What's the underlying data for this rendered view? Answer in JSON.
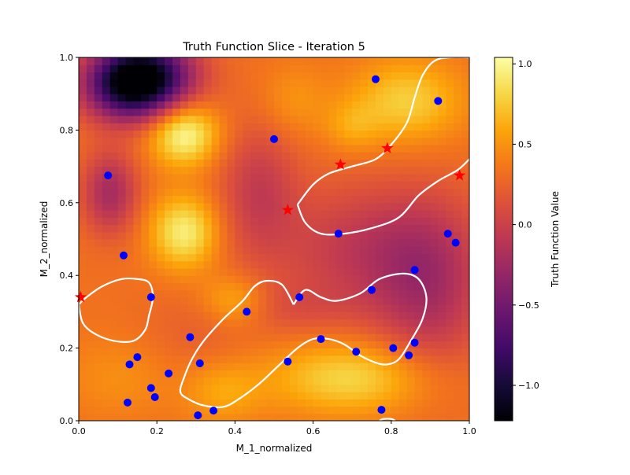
{
  "chart_data": {
    "type": "heatmap",
    "title": "Truth Function Slice - Iteration 5",
    "xlabel": "M_1_normalized",
    "ylabel": "M_2_normalized",
    "xlim": [
      0,
      1
    ],
    "ylim": [
      0,
      1
    ],
    "x_ticks": [
      "0.0",
      "0.2",
      "0.4",
      "0.6",
      "0.8",
      "1.0"
    ],
    "y_ticks": [
      "0.0",
      "0.2",
      "0.4",
      "0.6",
      "0.8",
      "1.0"
    ],
    "colormap": "inferno",
    "colorbar": {
      "label": "Truth Function Value",
      "range": [
        -1.22,
        1.04
      ],
      "ticks": [
        "−1.0",
        "−0.5",
        "0.0",
        "0.5",
        "1.0"
      ],
      "tick_values": [
        -1.0,
        -0.5,
        0.0,
        0.5,
        1.0
      ]
    },
    "field_features": {
      "base": 0.33,
      "bumps": [
        {
          "x": 0.16,
          "y": 0.95,
          "amp": -1.55,
          "sx": 0.09,
          "sy": 0.07
        },
        {
          "x": 0.12,
          "y": 0.9,
          "amp": -0.5,
          "sx": 0.08,
          "sy": 0.06
        },
        {
          "x": 0.27,
          "y": 0.79,
          "amp": 0.7,
          "sx": 0.06,
          "sy": 0.06
        },
        {
          "x": 0.27,
          "y": 0.52,
          "amp": 0.62,
          "sx": 0.06,
          "sy": 0.07
        },
        {
          "x": 0.08,
          "y": 0.63,
          "amp": -0.55,
          "sx": 0.05,
          "sy": 0.08
        },
        {
          "x": 0.46,
          "y": 0.64,
          "amp": -0.35,
          "sx": 0.07,
          "sy": 0.13
        },
        {
          "x": 0.55,
          "y": 0.88,
          "amp": 0.18,
          "sx": 0.06,
          "sy": 0.07
        },
        {
          "x": 0.84,
          "y": 0.88,
          "amp": 0.45,
          "sx": 0.1,
          "sy": 0.08
        },
        {
          "x": 0.7,
          "y": 0.81,
          "amp": 0.22,
          "sx": 0.05,
          "sy": 0.05
        },
        {
          "x": 0.74,
          "y": 0.47,
          "amp": -0.4,
          "sx": 0.17,
          "sy": 0.13
        },
        {
          "x": 0.9,
          "y": 0.35,
          "amp": -0.42,
          "sx": 0.1,
          "sy": 0.17
        },
        {
          "x": 0.53,
          "y": 0.31,
          "amp": -0.15,
          "sx": 0.12,
          "sy": 0.05
        },
        {
          "x": 0.3,
          "y": 0.24,
          "amp": -0.1,
          "sx": 0.1,
          "sy": 0.08
        },
        {
          "x": 0.7,
          "y": 0.12,
          "amp": 0.5,
          "sx": 0.15,
          "sy": 0.07
        },
        {
          "x": 0.1,
          "y": 0.12,
          "amp": 0.15,
          "sx": 0.1,
          "sy": 0.08
        },
        {
          "x": 0.37,
          "y": 0.08,
          "amp": 0.25,
          "sx": 0.07,
          "sy": 0.06
        },
        {
          "x": 0.4,
          "y": 0.33,
          "amp": 0.35,
          "sx": 0.06,
          "sy": 0.05
        }
      ]
    },
    "contours": [
      [
        [
          0.0,
          0.32
        ],
        [
          0.01,
          0.27
        ],
        [
          0.04,
          0.24
        ],
        [
          0.09,
          0.22
        ],
        [
          0.14,
          0.22
        ],
        [
          0.17,
          0.25
        ],
        [
          0.18,
          0.29
        ],
        [
          0.19,
          0.34
        ],
        [
          0.18,
          0.38
        ],
        [
          0.15,
          0.39
        ],
        [
          0.11,
          0.39
        ],
        [
          0.06,
          0.37
        ],
        [
          0.02,
          0.34
        ],
        [
          0.0,
          0.32
        ]
      ],
      [
        [
          0.55,
          0.32
        ],
        [
          0.58,
          0.36
        ],
        [
          0.62,
          0.34
        ],
        [
          0.66,
          0.33
        ],
        [
          0.72,
          0.35
        ],
        [
          0.77,
          0.39
        ],
        [
          0.83,
          0.405
        ],
        [
          0.87,
          0.39
        ],
        [
          0.89,
          0.34
        ],
        [
          0.88,
          0.28
        ],
        [
          0.85,
          0.22
        ],
        [
          0.82,
          0.17
        ],
        [
          0.79,
          0.155
        ],
        [
          0.76,
          0.16
        ],
        [
          0.72,
          0.18
        ],
        [
          0.68,
          0.21
        ],
        [
          0.64,
          0.225
        ],
        [
          0.6,
          0.225
        ],
        [
          0.56,
          0.2
        ],
        [
          0.51,
          0.15
        ],
        [
          0.46,
          0.1
        ],
        [
          0.41,
          0.06
        ],
        [
          0.37,
          0.038
        ],
        [
          0.32,
          0.042
        ],
        [
          0.28,
          0.06
        ],
        [
          0.26,
          0.08
        ],
        [
          0.27,
          0.12
        ],
        [
          0.29,
          0.17
        ],
        [
          0.32,
          0.22
        ],
        [
          0.37,
          0.28
        ],
        [
          0.42,
          0.33
        ],
        [
          0.45,
          0.37
        ],
        [
          0.48,
          0.385
        ],
        [
          0.52,
          0.375
        ],
        [
          0.55,
          0.32
        ]
      ],
      [
        [
          0.56,
          0.595
        ],
        [
          0.6,
          0.65
        ],
        [
          0.64,
          0.68
        ],
        [
          0.7,
          0.7
        ],
        [
          0.76,
          0.72
        ],
        [
          0.8,
          0.76
        ],
        [
          0.84,
          0.82
        ],
        [
          0.86,
          0.89
        ],
        [
          0.88,
          0.95
        ],
        [
          0.91,
          0.99
        ],
        [
          0.95,
          1.0
        ],
        [
          1.0,
          1.0
        ]
      ],
      [
        [
          0.56,
          0.595
        ],
        [
          0.58,
          0.545
        ],
        [
          0.62,
          0.515
        ],
        [
          0.68,
          0.515
        ],
        [
          0.75,
          0.53
        ],
        [
          0.82,
          0.56
        ],
        [
          0.87,
          0.62
        ],
        [
          0.92,
          0.66
        ],
        [
          0.97,
          0.69
        ],
        [
          1.0,
          0.72
        ]
      ],
      [
        [
          0.77,
          0.0
        ],
        [
          0.78,
          0.005
        ],
        [
          0.8,
          0.005
        ],
        [
          0.81,
          0.0
        ]
      ]
    ],
    "series": [
      {
        "marker": "circle",
        "color": "#0000ff",
        "points": [
          [
            0.76,
            0.94
          ],
          [
            0.92,
            0.88
          ],
          [
            0.5,
            0.775
          ],
          [
            0.075,
            0.675
          ],
          [
            0.665,
            0.515
          ],
          [
            0.945,
            0.515
          ],
          [
            0.965,
            0.49
          ],
          [
            0.115,
            0.455
          ],
          [
            0.86,
            0.415
          ],
          [
            0.185,
            0.34
          ],
          [
            0.565,
            0.34
          ],
          [
            0.75,
            0.36
          ],
          [
            0.43,
            0.3
          ],
          [
            0.285,
            0.23
          ],
          [
            0.62,
            0.225
          ],
          [
            0.86,
            0.215
          ],
          [
            0.805,
            0.2
          ],
          [
            0.71,
            0.19
          ],
          [
            0.15,
            0.175
          ],
          [
            0.845,
            0.18
          ],
          [
            0.13,
            0.155
          ],
          [
            0.31,
            0.158
          ],
          [
            0.535,
            0.163
          ],
          [
            0.23,
            0.13
          ],
          [
            0.185,
            0.09
          ],
          [
            0.195,
            0.065
          ],
          [
            0.125,
            0.05
          ],
          [
            0.775,
            0.03
          ],
          [
            0.345,
            0.028
          ],
          [
            0.305,
            0.015
          ]
        ]
      },
      {
        "marker": "star",
        "color": "#ff0000",
        "points": [
          [
            0.79,
            0.75
          ],
          [
            0.67,
            0.705
          ],
          [
            0.975,
            0.675
          ],
          [
            0.535,
            0.58
          ],
          [
            0.005,
            0.34
          ]
        ]
      }
    ]
  }
}
